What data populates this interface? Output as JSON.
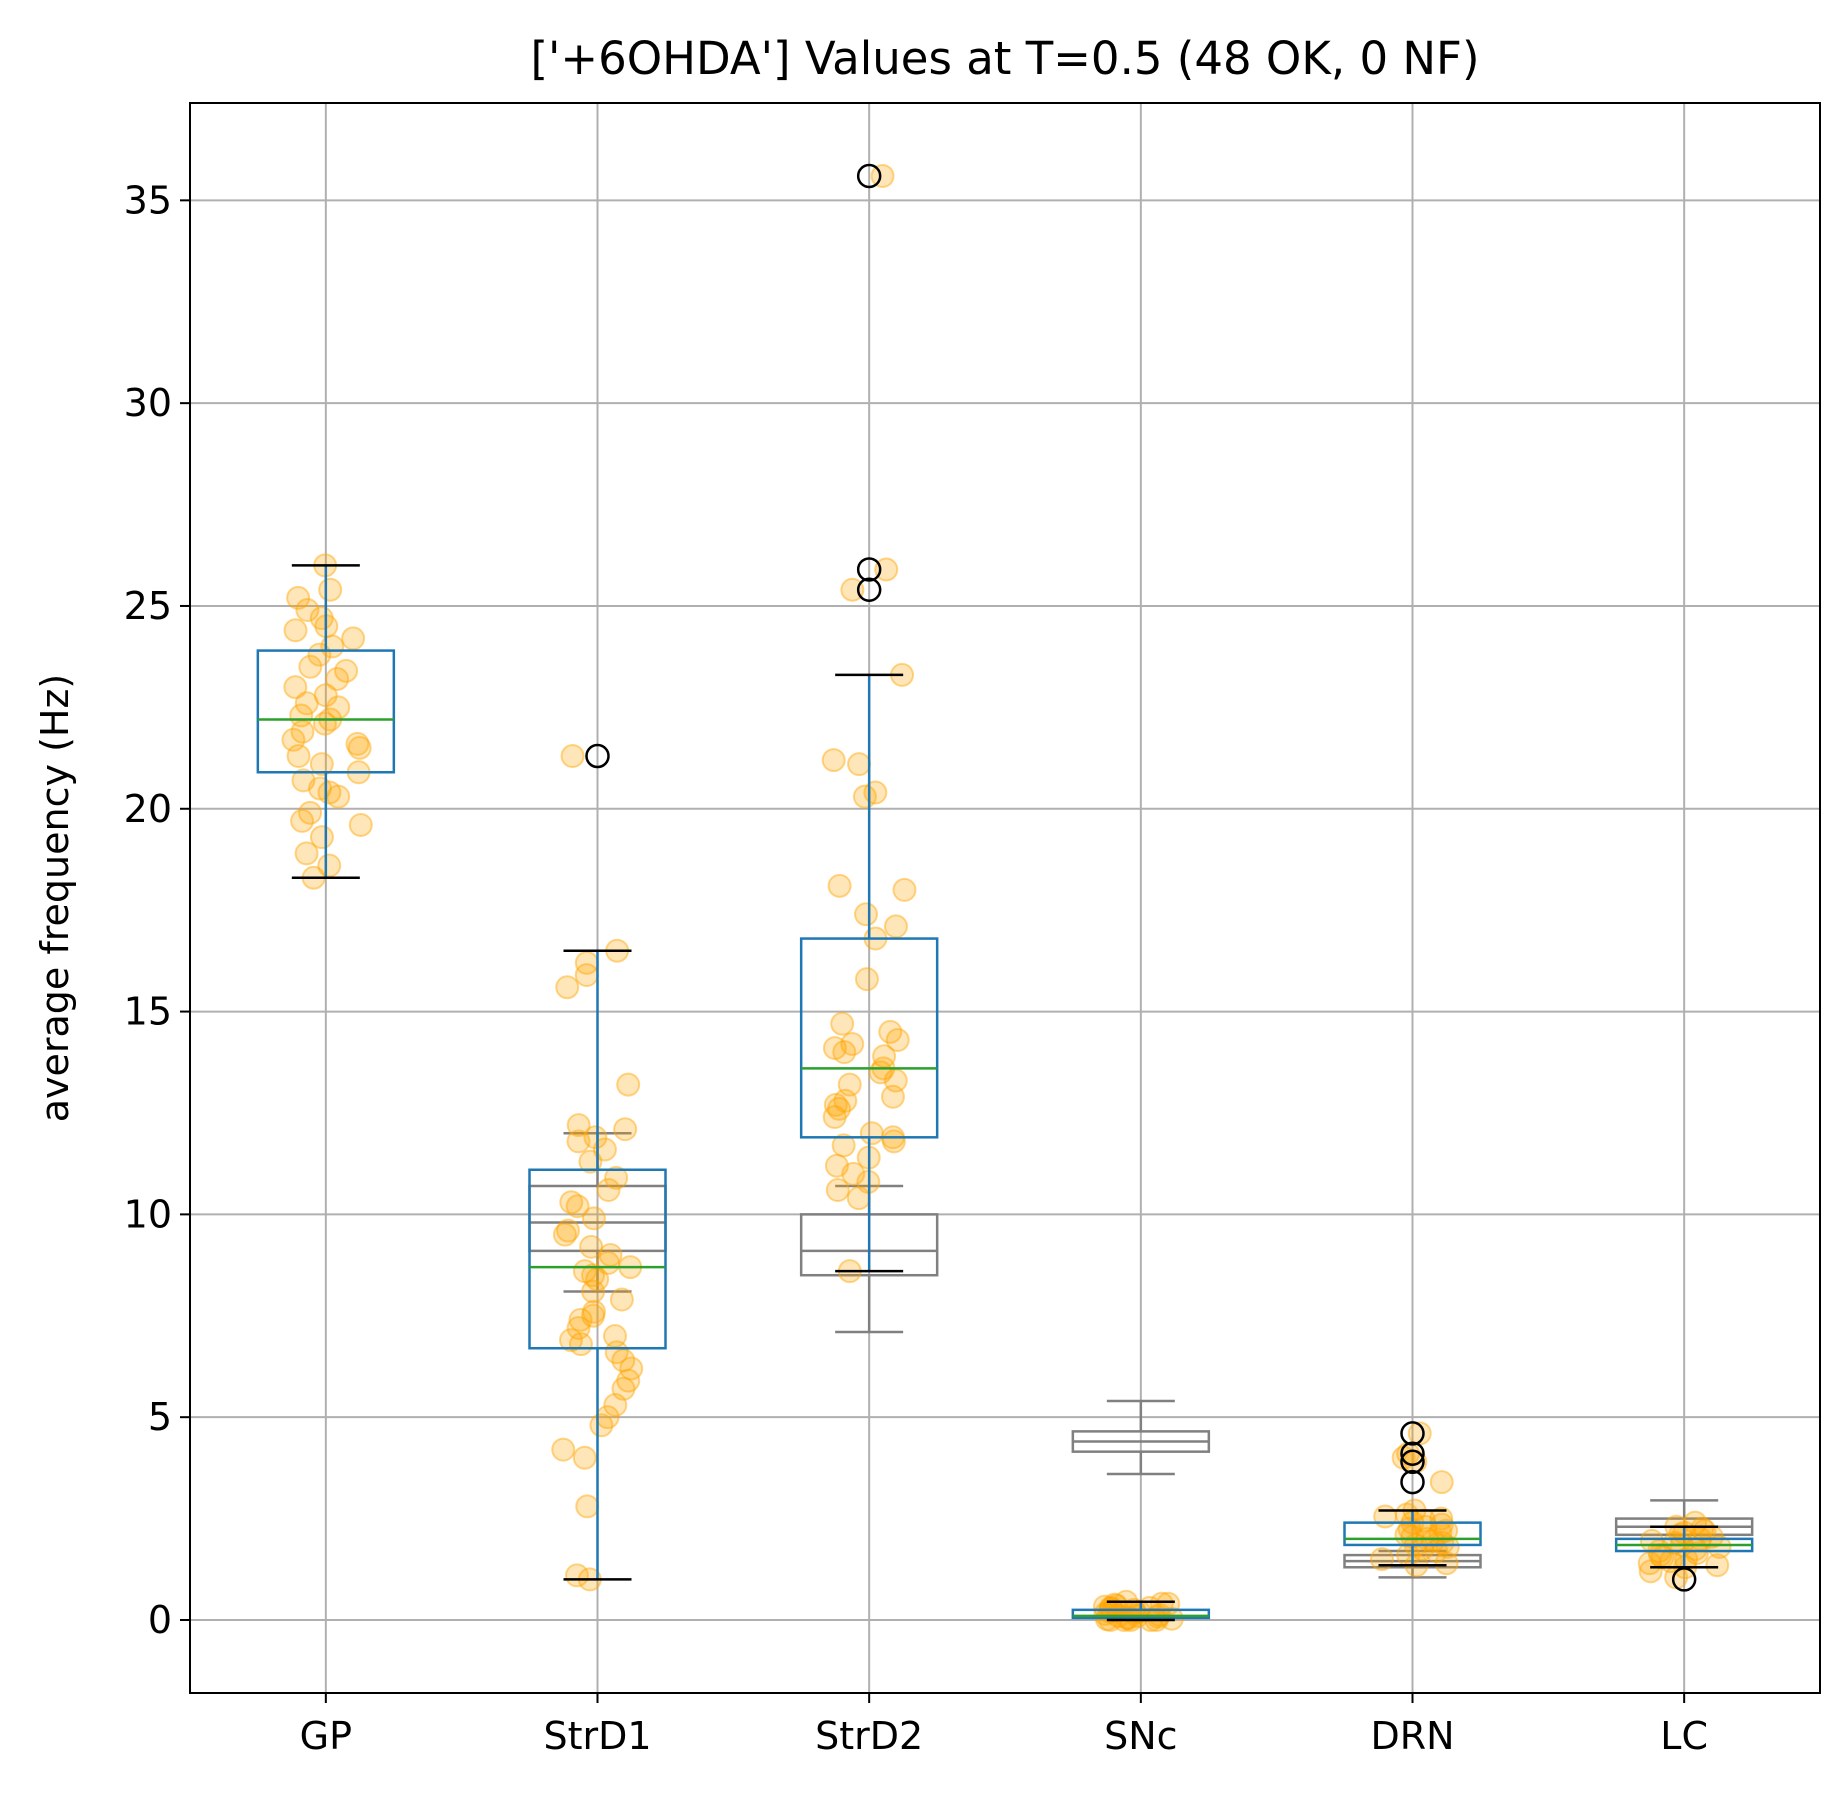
{
  "chart_data": {
    "type": "box",
    "title": "['+6OHDA'] Values at T=0.5 (48 OK, 0 NF)",
    "xlabel": "",
    "ylabel": "average frequency (Hz)",
    "categories": [
      "GP",
      "StrD1",
      "StrD2",
      "SNc",
      "DRN",
      "LC"
    ],
    "ylim": [
      -1.8,
      37.4
    ],
    "yticks": [
      0,
      5,
      10,
      15,
      20,
      25,
      30,
      35
    ],
    "grid": true,
    "colors": {
      "box": "#1f77b4",
      "median": "#2ca02c",
      "reference_box": "#808080",
      "points": "#ffa500",
      "whisker_cap": "#000000",
      "outlier": "#000000"
    },
    "boxes": [
      {
        "category": "GP",
        "whislo": 18.3,
        "q1": 20.9,
        "med": 22.2,
        "q3": 23.9,
        "whishi": 26.0,
        "outliers": []
      },
      {
        "category": "StrD1",
        "whislo": 1.0,
        "q1": 6.7,
        "med": 8.7,
        "q3": 11.1,
        "whishi": 16.5,
        "outliers": [
          21.3
        ]
      },
      {
        "category": "StrD2",
        "whislo": 8.6,
        "q1": 11.9,
        "med": 13.6,
        "q3": 16.8,
        "whishi": 23.3,
        "outliers": [
          35.6,
          25.9,
          25.4
        ]
      },
      {
        "category": "SNc",
        "whislo": 0.0,
        "q1": 0.05,
        "med": 0.1,
        "q3": 0.25,
        "whishi": 0.45,
        "outliers": []
      },
      {
        "category": "DRN",
        "whislo": 1.35,
        "q1": 1.85,
        "med": 2.0,
        "q3": 2.4,
        "whishi": 2.7,
        "outliers": [
          4.6,
          4.1,
          3.9,
          3.4
        ]
      },
      {
        "category": "LC",
        "whislo": 1.3,
        "q1": 1.7,
        "med": 1.85,
        "q3": 2.0,
        "whishi": 2.3,
        "outliers": [
          1.0
        ]
      }
    ],
    "reference_boxes": [
      {
        "category": "StrD1",
        "whislo": 8.1,
        "q1": 9.1,
        "med": 9.8,
        "q3": 10.7,
        "whishi": 12.0
      },
      {
        "category": "StrD2",
        "whislo": 7.1,
        "q1": 8.5,
        "med": 9.1,
        "q3": 10.0,
        "whishi": 10.7
      },
      {
        "category": "SNc",
        "whislo": 3.6,
        "q1": 4.15,
        "med": 4.4,
        "q3": 4.65,
        "whishi": 5.4
      },
      {
        "category": "DRN",
        "whislo": 1.05,
        "q1": 1.3,
        "med": 1.45,
        "q3": 1.6,
        "whishi": 1.7
      },
      {
        "category": "LC",
        "whislo": 1.85,
        "q1": 2.1,
        "med": 2.3,
        "q3": 2.5,
        "whishi": 2.95
      }
    ],
    "points": [
      {
        "category": "GP",
        "values": [
          26.0,
          25.4,
          25.2,
          24.9,
          24.7,
          24.5,
          24.4,
          24.2,
          24.0,
          23.8,
          23.5,
          23.4,
          23.2,
          23.0,
          22.8,
          22.6,
          22.5,
          22.3,
          22.2,
          22.1,
          21.9,
          21.7,
          21.6,
          21.5,
          21.3,
          21.1,
          20.9,
          20.7,
          20.5,
          20.4,
          20.3,
          19.9,
          19.7,
          19.6,
          19.3,
          18.9,
          18.6,
          18.3
        ]
      },
      {
        "category": "StrD1",
        "values": [
          21.3,
          16.5,
          16.2,
          15.9,
          15.6,
          13.2,
          12.2,
          12.1,
          11.9,
          11.8,
          11.6,
          11.3,
          10.9,
          10.6,
          10.3,
          10.2,
          9.9,
          9.6,
          9.5,
          9.2,
          9.0,
          8.8,
          8.7,
          8.6,
          8.5,
          8.4,
          8.1,
          7.9,
          7.6,
          7.5,
          7.4,
          7.2,
          7.0,
          6.9,
          6.8,
          6.6,
          6.4,
          6.2,
          5.9,
          5.7,
          5.3,
          5.0,
          4.8,
          4.2,
          4.0,
          2.8,
          1.1,
          1.0
        ]
      },
      {
        "category": "StrD2",
        "values": [
          35.6,
          25.9,
          25.4,
          23.3,
          21.2,
          21.1,
          20.4,
          20.3,
          18.1,
          18.0,
          17.4,
          17.1,
          16.8,
          15.8,
          14.7,
          14.5,
          14.3,
          14.2,
          14.1,
          14.0,
          13.9,
          13.6,
          13.5,
          13.3,
          13.2,
          12.9,
          12.8,
          12.7,
          12.6,
          12.4,
          12.0,
          11.9,
          11.8,
          11.7,
          11.4,
          11.2,
          11.0,
          10.8,
          10.6,
          10.4,
          8.6
        ]
      },
      {
        "category": "SNc",
        "values": [
          0.45,
          0.4,
          0.38,
          0.35,
          0.33,
          0.3,
          0.28,
          0.25,
          0.23,
          0.2,
          0.18,
          0.15,
          0.13,
          0.1,
          0.08,
          0.05,
          0.03,
          0.0,
          0.0,
          0.0,
          0.0,
          0.0,
          0.4,
          0.3,
          0.2,
          0.1,
          0.05,
          0.02
        ]
      },
      {
        "category": "DRN",
        "values": [
          4.6,
          4.1,
          4.0,
          3.9,
          3.4,
          2.7,
          2.6,
          2.55,
          2.5,
          2.45,
          2.4,
          2.35,
          2.3,
          2.25,
          2.2,
          2.15,
          2.1,
          2.05,
          2.0,
          1.95,
          1.9,
          1.85,
          1.8,
          1.75,
          1.7,
          1.6,
          1.5,
          1.4,
          1.35
        ]
      },
      {
        "category": "LC",
        "values": [
          2.4,
          2.3,
          2.25,
          2.2,
          2.15,
          2.1,
          2.05,
          2.0,
          1.95,
          1.9,
          1.85,
          1.8,
          1.75,
          1.7,
          1.65,
          1.6,
          1.55,
          1.5,
          1.45,
          1.4,
          1.35,
          1.3,
          1.2,
          1.05
        ]
      }
    ]
  }
}
